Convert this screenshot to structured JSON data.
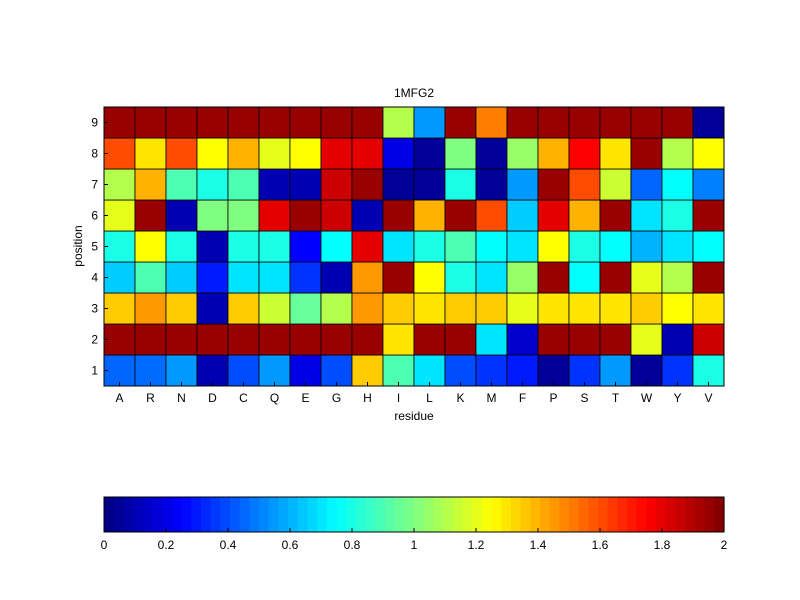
{
  "chart_data": {
    "type": "heatmap",
    "title": "1MFG2",
    "xlabel": "residue",
    "ylabel": "position",
    "x_categories": [
      "A",
      "R",
      "N",
      "D",
      "C",
      "Q",
      "E",
      "G",
      "H",
      "I",
      "L",
      "K",
      "M",
      "F",
      "P",
      "S",
      "T",
      "W",
      "Y",
      "V"
    ],
    "y_categories": [
      "1",
      "2",
      "3",
      "4",
      "5",
      "6",
      "7",
      "8",
      "9"
    ],
    "values": [
      [
        0.45,
        0.46,
        0.55,
        0.1,
        0.4,
        0.55,
        0.2,
        0.4,
        1.35,
        0.9,
        0.7,
        0.4,
        0.35,
        0.3,
        0.05,
        0.35,
        0.55,
        0.05,
        0.35,
        0.8
      ],
      [
        1.95,
        1.95,
        1.95,
        1.95,
        1.95,
        1.95,
        1.95,
        1.95,
        1.95,
        1.3,
        1.95,
        1.95,
        0.7,
        0.15,
        1.95,
        1.95,
        1.95,
        1.2,
        0.1,
        1.85
      ],
      [
        1.35,
        1.45,
        1.35,
        0.1,
        1.35,
        1.15,
        0.95,
        1.1,
        1.45,
        1.35,
        1.3,
        1.35,
        1.35,
        1.2,
        1.3,
        1.3,
        1.3,
        1.35,
        1.25,
        1.3
      ],
      [
        0.65,
        0.9,
        0.65,
        0.3,
        0.7,
        0.7,
        0.35,
        0.1,
        1.45,
        1.95,
        1.25,
        0.8,
        0.7,
        1.05,
        1.95,
        0.75,
        1.95,
        1.2,
        1.1,
        1.95
      ],
      [
        0.8,
        1.25,
        0.8,
        0.1,
        0.8,
        0.8,
        0.25,
        0.75,
        1.8,
        0.7,
        0.8,
        0.9,
        0.75,
        0.7,
        1.25,
        0.8,
        0.75,
        0.6,
        0.7,
        0.75
      ],
      [
        1.2,
        1.95,
        0.1,
        1.0,
        1.0,
        1.8,
        1.95,
        1.85,
        0.1,
        1.95,
        1.4,
        1.95,
        1.6,
        0.65,
        1.8,
        1.4,
        1.95,
        0.7,
        0.8,
        1.95
      ],
      [
        1.1,
        1.4,
        0.9,
        0.8,
        0.9,
        0.1,
        0.1,
        1.85,
        1.95,
        0.05,
        0.05,
        0.8,
        0.05,
        0.55,
        1.95,
        1.6,
        1.15,
        0.45,
        0.75,
        0.5
      ],
      [
        1.6,
        1.3,
        1.6,
        1.25,
        1.4,
        1.2,
        1.25,
        1.8,
        1.8,
        0.2,
        0.05,
        1.0,
        0.05,
        1.05,
        1.4,
        1.75,
        1.3,
        1.95,
        1.1,
        1.25
      ],
      [
        1.95,
        1.95,
        1.95,
        1.95,
        1.95,
        1.95,
        1.95,
        1.95,
        1.95,
        1.1,
        0.55,
        1.95,
        1.5,
        1.95,
        1.95,
        1.95,
        1.95,
        1.95,
        1.95,
        0.05
      ]
    ],
    "colorbar": {
      "colormap": "jet",
      "range": [
        0,
        2
      ],
      "ticks": [
        "0",
        "0.2",
        "0.4",
        "0.6",
        "0.8",
        "1",
        "1.2",
        "1.4",
        "1.6",
        "1.8",
        "2"
      ]
    }
  }
}
